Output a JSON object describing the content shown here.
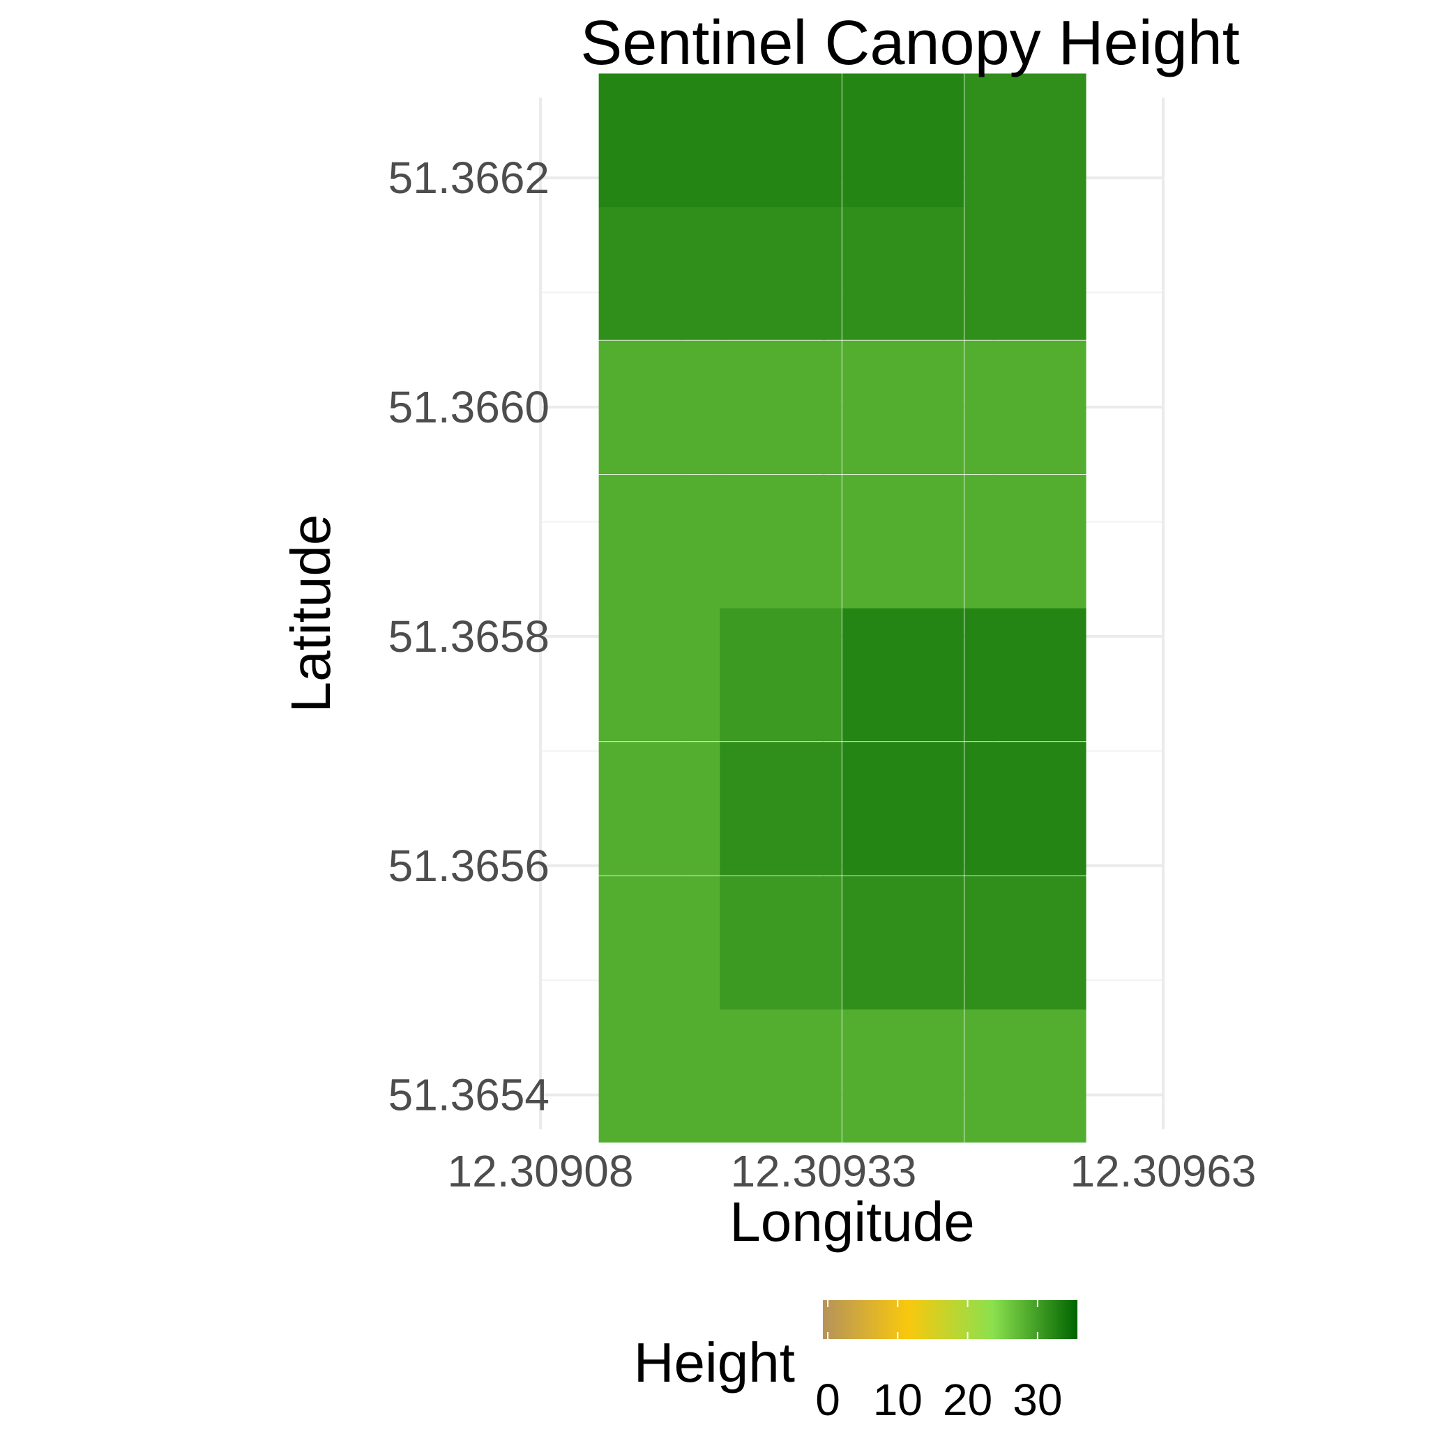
{
  "chart_data": {
    "type": "heatmap",
    "title": "Sentinel Canopy Height",
    "xlabel": "Longitude",
    "ylabel": "Latitude",
    "x_ticks": [
      "12.30908",
      "12.30933",
      "12.30963"
    ],
    "y_ticks": [
      "51.3654",
      "51.3656",
      "51.3658",
      "51.3660",
      "51.3662"
    ],
    "xlim": [
      12.30908,
      12.30963
    ],
    "ylim": [
      51.36537,
      51.36627
    ],
    "grid": true,
    "cells": [
      {
        "lon": 12.309185,
        "lat": 51.365417,
        "height": 28
      },
      {
        "lon": 12.309185,
        "lat": 51.365533,
        "height": 28
      },
      {
        "lon": 12.309185,
        "lat": 51.36565,
        "height": 28
      },
      {
        "lon": 12.309185,
        "lat": 51.365767,
        "height": 28
      },
      {
        "lon": 12.309185,
        "lat": 51.365883,
        "height": 28
      },
      {
        "lon": 12.309185,
        "lat": 51.366,
        "height": 28
      },
      {
        "lon": 12.309185,
        "lat": 51.366117,
        "height": 31
      },
      {
        "lon": 12.309185,
        "lat": 51.366233,
        "height": 32
      },
      {
        "lon": 12.309292,
        "lat": 51.365417,
        "height": 28
      },
      {
        "lon": 12.309292,
        "lat": 51.365533,
        "height": 30
      },
      {
        "lon": 12.309292,
        "lat": 51.36565,
        "height": 31
      },
      {
        "lon": 12.309292,
        "lat": 51.365767,
        "height": 30
      },
      {
        "lon": 12.309292,
        "lat": 51.365883,
        "height": 28
      },
      {
        "lon": 12.309292,
        "lat": 51.366,
        "height": 28
      },
      {
        "lon": 12.309292,
        "lat": 51.366117,
        "height": 31
      },
      {
        "lon": 12.309292,
        "lat": 51.366233,
        "height": 32
      },
      {
        "lon": 12.3094,
        "lat": 51.365417,
        "height": 28
      },
      {
        "lon": 12.3094,
        "lat": 51.365533,
        "height": 31
      },
      {
        "lon": 12.3094,
        "lat": 51.36565,
        "height": 32
      },
      {
        "lon": 12.3094,
        "lat": 51.365767,
        "height": 32
      },
      {
        "lon": 12.3094,
        "lat": 51.365883,
        "height": 28
      },
      {
        "lon": 12.3094,
        "lat": 51.366,
        "height": 28
      },
      {
        "lon": 12.3094,
        "lat": 51.366117,
        "height": 31
      },
      {
        "lon": 12.3094,
        "lat": 51.366233,
        "height": 32
      },
      {
        "lon": 12.309508,
        "lat": 51.365417,
        "height": 28
      },
      {
        "lon": 12.309508,
        "lat": 51.365533,
        "height": 31
      },
      {
        "lon": 12.309508,
        "lat": 51.36565,
        "height": 32
      },
      {
        "lon": 12.309508,
        "lat": 51.365767,
        "height": 32
      },
      {
        "lon": 12.309508,
        "lat": 51.365883,
        "height": 28
      },
      {
        "lon": 12.309508,
        "lat": 51.366,
        "height": 28
      },
      {
        "lon": 12.309508,
        "lat": 51.366117,
        "height": 31
      },
      {
        "lon": 12.309508,
        "lat": 51.366233,
        "height": 31
      }
    ],
    "legend": {
      "title": "Height",
      "placement": "bottom",
      "ticks": [
        "0",
        "10",
        "20",
        "30"
      ],
      "range": [
        0,
        35
      ],
      "colors": [
        "#b5935a",
        "#f9c80e",
        "#8be04e",
        "#006400"
      ]
    }
  }
}
